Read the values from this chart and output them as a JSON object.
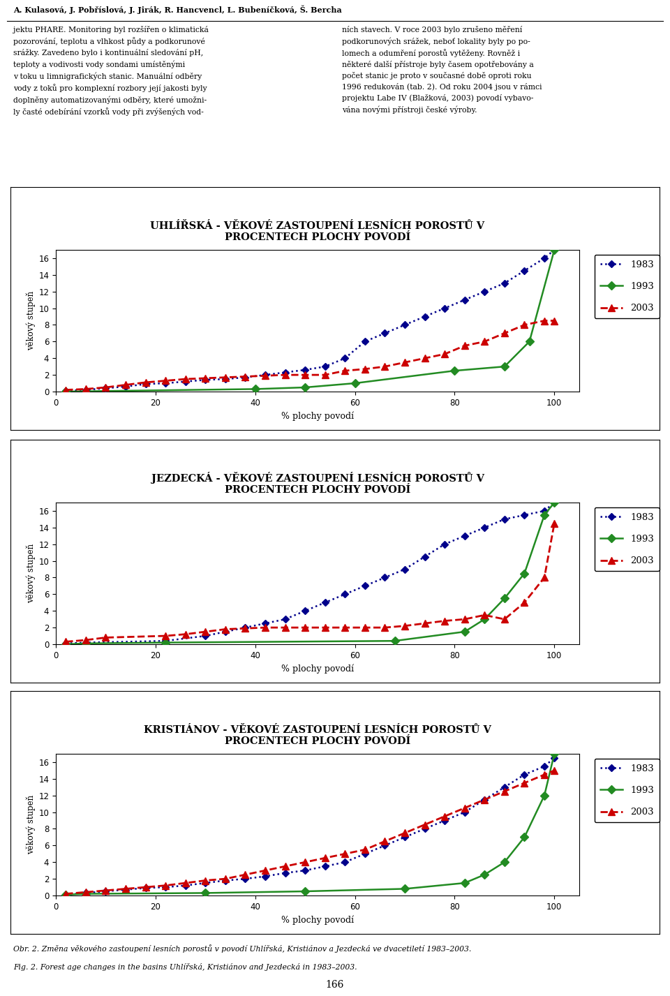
{
  "header_line1": "A. Kulasová, J. Pobříslová, J. Jirák, R. Hancvencl, L. Bubeníčková, Š. Bercha",
  "para_left": "jektu PHARE. Monitoring byl rozšířen o klimatická\npozorování, teplotu a vlhkost půdy a podkorunové\nsrážky. Zavedeno bylo i kontinuální sledování pH,\nteploty a vodivosti vody sondami umístěnými\nv toku u limnigrafických stanic. Manuální odběry\nvody z toků pro komplexní rozbory její jakosti byly\ndoplněny automatizovanými odběry, které umožni-\nly časté odebírání vzorků vody při zvýšených vod-",
  "para_right": "ních stavech. V roce 2003 bylo zrušeno měření\npodkorunových srážek, neboť lokality byly po po-\nlomech a odumření porostů vytěženy. Rovněž i\nněkteré další přístroje byly časem opotřebovány a\npočet stanic je proto v současné době oproti roku\n1996 redukován (tab. 2). Od roku 2004 jsou v rámci\nprojektu Labe IV (Blažková, 2003) povodí vybavo-\nvána novými přístroji české výroby.",
  "charts": [
    {
      "title_line1": "UHLÍŘSKÁ - VĚKOVÉ ZASTOUPENÍ LESNÍCH POROSTŮ V",
      "title_line2": "PROCENTECH PLOCHY POVODÍ",
      "data_1983_x": [
        2,
        6,
        10,
        14,
        18,
        22,
        26,
        30,
        34,
        38,
        42,
        46,
        50,
        54,
        58,
        62,
        66,
        70,
        74,
        78,
        82,
        86,
        90,
        94,
        98,
        100
      ],
      "data_1983_y": [
        0.1,
        0.2,
        0.4,
        0.6,
        0.9,
        1.0,
        1.2,
        1.4,
        1.5,
        1.7,
        2.0,
        2.3,
        2.6,
        3.0,
        4.0,
        6.0,
        7.0,
        8.0,
        9.0,
        10.0,
        11.0,
        12.0,
        13.0,
        14.5,
        16.0,
        17.0
      ],
      "data_1993_x": [
        2,
        40,
        50,
        60,
        80,
        90,
        95,
        100
      ],
      "data_1993_y": [
        0.0,
        0.3,
        0.5,
        1.0,
        2.5,
        3.0,
        6.0,
        17.0
      ],
      "data_2003_x": [
        2,
        6,
        10,
        14,
        18,
        22,
        26,
        30,
        34,
        38,
        42,
        46,
        50,
        54,
        58,
        62,
        66,
        70,
        74,
        78,
        82,
        86,
        90,
        94,
        98,
        100
      ],
      "data_2003_y": [
        0.2,
        0.3,
        0.5,
        0.8,
        1.1,
        1.3,
        1.5,
        1.6,
        1.7,
        1.8,
        1.9,
        2.0,
        2.0,
        2.0,
        2.5,
        2.7,
        3.0,
        3.5,
        4.0,
        4.5,
        5.5,
        6.0,
        7.0,
        8.0,
        8.5,
        8.5
      ]
    },
    {
      "title_line1": "JEZDECKÁ - VĚKOVÉ ZASTOUPENÍ LESNÍCH POROSTŮ V",
      "title_line2": "PROCENTECH PLOCHY POVODÍ",
      "data_1983_x": [
        2,
        6,
        22,
        30,
        34,
        38,
        42,
        46,
        50,
        54,
        58,
        62,
        66,
        70,
        74,
        78,
        82,
        86,
        90,
        94,
        98,
        100
      ],
      "data_1983_y": [
        0.1,
        0.2,
        0.4,
        1.0,
        1.5,
        2.0,
        2.5,
        3.0,
        4.0,
        5.0,
        6.0,
        7.0,
        8.0,
        9.0,
        10.5,
        12.0,
        13.0,
        14.0,
        15.0,
        15.5,
        16.0,
        17.0
      ],
      "data_1993_x": [
        2,
        6,
        22,
        68,
        82,
        86,
        90,
        94,
        98,
        100
      ],
      "data_1993_y": [
        0.0,
        0.1,
        0.2,
        0.4,
        1.5,
        3.0,
        5.5,
        8.5,
        15.5,
        17.0
      ],
      "data_2003_x": [
        2,
        6,
        10,
        22,
        26,
        30,
        34,
        38,
        42,
        46,
        50,
        54,
        58,
        62,
        66,
        70,
        74,
        78,
        82,
        86,
        90,
        94,
        98,
        100
      ],
      "data_2003_y": [
        0.3,
        0.5,
        0.8,
        1.0,
        1.2,
        1.5,
        1.8,
        1.9,
        2.0,
        2.0,
        2.0,
        2.0,
        2.0,
        2.0,
        2.0,
        2.2,
        2.5,
        2.8,
        3.0,
        3.5,
        3.0,
        5.0,
        8.0,
        14.5
      ]
    },
    {
      "title_line1": "KRISTIÁNOV - VĚKOVÉ ZASTOUPENÍ LESNÍCH POROSTŮ V",
      "title_line2": "PROCENTECH PLOCHY POVODÍ",
      "data_1983_x": [
        2,
        6,
        10,
        14,
        18,
        22,
        26,
        30,
        34,
        38,
        42,
        46,
        50,
        54,
        58,
        62,
        66,
        70,
        74,
        78,
        82,
        86,
        90,
        94,
        98,
        100
      ],
      "data_1983_y": [
        0.1,
        0.3,
        0.5,
        0.7,
        0.9,
        1.0,
        1.2,
        1.5,
        1.8,
        2.0,
        2.3,
        2.7,
        3.0,
        3.5,
        4.0,
        5.0,
        6.0,
        7.0,
        8.0,
        9.0,
        10.0,
        11.5,
        13.0,
        14.5,
        15.5,
        16.5
      ],
      "data_1993_x": [
        2,
        6,
        30,
        50,
        70,
        82,
        86,
        90,
        94,
        98,
        100
      ],
      "data_1993_y": [
        0.1,
        0.2,
        0.3,
        0.5,
        0.8,
        1.5,
        2.5,
        4.0,
        7.0,
        12.0,
        17.0
      ],
      "data_2003_x": [
        2,
        6,
        10,
        14,
        18,
        22,
        26,
        30,
        34,
        38,
        42,
        46,
        50,
        54,
        58,
        62,
        66,
        70,
        74,
        78,
        82,
        86,
        90,
        94,
        98,
        100
      ],
      "data_2003_y": [
        0.2,
        0.4,
        0.6,
        0.8,
        1.0,
        1.2,
        1.5,
        1.8,
        2.0,
        2.5,
        3.0,
        3.5,
        4.0,
        4.5,
        5.0,
        5.5,
        6.5,
        7.5,
        8.5,
        9.5,
        10.5,
        11.5,
        12.5,
        13.5,
        14.5,
        15.0
      ]
    }
  ],
  "xlabel": "% plochy povodí",
  "ylabel": "věkový stupeň",
  "xlim": [
    0,
    105
  ],
  "ylim": [
    0,
    17
  ],
  "yticks": [
    0,
    2,
    4,
    6,
    8,
    10,
    12,
    14,
    16
  ],
  "xticks": [
    0,
    20,
    40,
    60,
    80,
    100
  ],
  "color_1983": "#00008B",
  "color_1993": "#228B22",
  "color_2003": "#CC0000",
  "caption_line1": "Obr. 2. Změna věkového zastoupení lesních porostů v povodí Uhlířská, Kristiánov a Jezdecká ve dvacetiletí 1983–2003.",
  "caption_line2": "Fig. 2. Forest age changes in the basins Uhlířská, Kristiánov and Jezdecká in 1983–2003.",
  "page_number": "166",
  "bg_color": "#FFFFFF",
  "chart_bg": "#FFFFFF",
  "border_color": "#000000"
}
